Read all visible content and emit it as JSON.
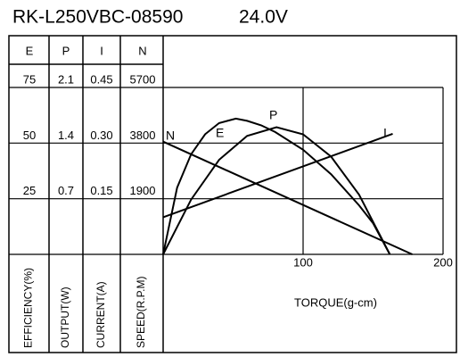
{
  "chart_data": {
    "type": "line",
    "title": "RK-L250VBC-08590",
    "voltage": "24.0V",
    "xlabel": "TORQUE(g-cm)",
    "xlim": [
      0,
      200
    ],
    "xticks": [
      100,
      200
    ],
    "axes": [
      {
        "name": "E",
        "label": "EFFICIENCY(%)",
        "ylim": [
          0,
          75
        ],
        "yticks": [
          25,
          50,
          75
        ]
      },
      {
        "name": "P",
        "label": "OUTPUT(W)",
        "ylim": [
          0,
          2.1
        ],
        "yticks": [
          0.7,
          1.4,
          2.1
        ]
      },
      {
        "name": "I",
        "label": "CURRENT(A)",
        "ylim": [
          0,
          0.45
        ],
        "yticks": [
          0.15,
          {
            "value": 0.3,
            "label": "0.30"
          },
          0.45
        ]
      },
      {
        "name": "N",
        "label": "SPEED(R.P.M)",
        "ylim": [
          0,
          5700
        ],
        "yticks": [
          1900,
          3800,
          5700
        ]
      }
    ],
    "series": [
      {
        "name": "N",
        "axis": 3,
        "x": [
          0,
          178
        ],
        "values": [
          3850,
          0
        ]
      },
      {
        "name": "E",
        "axis": 0,
        "x": [
          0,
          10,
          20,
          30,
          40,
          52,
          60,
          70,
          80,
          100,
          120,
          140,
          150,
          162
        ],
        "values": [
          0,
          30,
          45,
          54,
          59,
          61,
          60,
          58,
          55,
          47,
          36,
          22,
          14,
          0
        ]
      },
      {
        "name": "P",
        "axis": 1,
        "x": [
          0,
          20,
          40,
          60,
          81,
          100,
          120,
          140,
          162
        ],
        "values": [
          0,
          0.69,
          1.19,
          1.49,
          1.6,
          1.51,
          1.23,
          0.75,
          0
        ]
      },
      {
        "name": "I",
        "axis": 2,
        "x": [
          0,
          164
        ],
        "values": [
          0.1,
          0.325
        ]
      }
    ]
  }
}
